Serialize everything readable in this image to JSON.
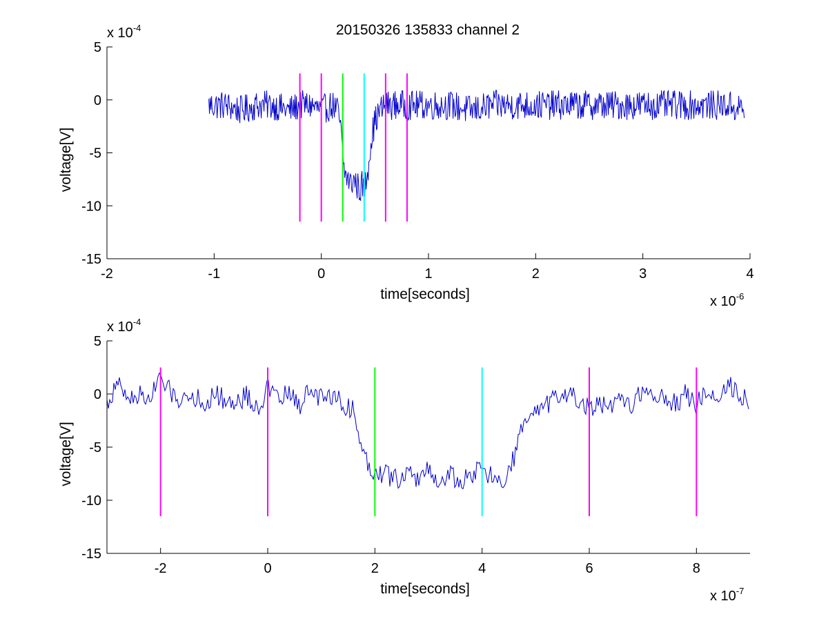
{
  "figure_title": "20150326 135833 channel 2",
  "colors": {
    "signal": "#0000cc",
    "magenta": "#ff00ff",
    "green": "#00ff00",
    "cyan": "#00ffff",
    "axis": "#000000"
  },
  "chart_data": [
    {
      "type": "line",
      "title": "20150326 135833 channel 2",
      "xlabel": "time[seconds]",
      "ylabel": "voltage[V]",
      "x_multiplier_base": "x 10",
      "x_multiplier_exp": "-6",
      "y_multiplier_base": "x 10",
      "y_multiplier_exp": "-4",
      "xlim": [
        -2,
        4
      ],
      "ylim": [
        -15,
        5
      ],
      "xticks": [
        -2,
        -1,
        0,
        1,
        2,
        3,
        4
      ],
      "yticks": [
        5,
        0,
        -5,
        -10,
        -15
      ],
      "xtick_labels": [
        "-2",
        "-1",
        "0",
        "1",
        "2",
        "3",
        "4"
      ],
      "ytick_labels": [
        "5",
        "0",
        "-5",
        "-10",
        "-15"
      ],
      "grid": false,
      "series": [
        {
          "x": [
            -1.05,
            -0.9,
            -0.75,
            -0.6,
            -0.45,
            -0.3,
            -0.2,
            -0.1,
            0.0,
            0.1,
            0.15,
            0.18,
            0.2,
            0.22,
            0.25,
            0.28,
            0.3,
            0.33,
            0.36,
            0.38,
            0.4,
            0.42,
            0.44,
            0.46,
            0.48,
            0.5,
            0.55,
            0.6,
            0.7,
            0.8,
            1.0,
            1.2,
            1.4,
            1.6,
            1.8,
            2.0,
            2.3,
            2.6,
            2.9,
            3.2,
            3.5,
            3.8,
            3.95
          ],
          "y": [
            -0.5,
            -0.5,
            -1,
            -0.5,
            -0.5,
            -1,
            -0.5,
            -0.5,
            -1,
            -0.5,
            -1,
            -2.5,
            -5.5,
            -7,
            -7.5,
            -8,
            -7.5,
            -8,
            -8.5,
            -8,
            -8.5,
            -7.5,
            -6,
            -4,
            -3,
            -2,
            -1,
            -0.5,
            -0.5,
            -0.5,
            -0.5,
            -0.5,
            -1,
            -0.5,
            -0.5,
            -0.5,
            -0.5,
            -0.5,
            -0.5,
            -0.5,
            -0.5,
            -0.5,
            -1
          ]
        }
      ],
      "markers": [
        {
          "x": -0.2,
          "color": "magenta",
          "ymin": -11.5,
          "ymax": 2.5
        },
        {
          "x": 0.0,
          "color": "magenta",
          "ymin": -11.5,
          "ymax": 2.5
        },
        {
          "x": 0.2,
          "color": "green",
          "ymin": -11.5,
          "ymax": 2.5
        },
        {
          "x": 0.4,
          "color": "cyan",
          "ymin": -11.5,
          "ymax": 2.5
        },
        {
          "x": 0.6,
          "color": "magenta",
          "ymin": -11.5,
          "ymax": 2.5
        },
        {
          "x": 0.8,
          "color": "magenta",
          "ymin": -11.5,
          "ymax": 2.5
        }
      ]
    },
    {
      "type": "line",
      "title": "",
      "xlabel": "time[seconds]",
      "ylabel": "voltage[V]",
      "x_multiplier_base": "x 10",
      "x_multiplier_exp": "-7",
      "y_multiplier_base": "x 10",
      "y_multiplier_exp": "-4",
      "xlim": [
        -3,
        9
      ],
      "ylim": [
        -15,
        5
      ],
      "xticks": [
        -2,
        0,
        2,
        4,
        6,
        8
      ],
      "yticks": [
        5,
        0,
        -5,
        -10,
        -15
      ],
      "xtick_labels": [
        "-2",
        "0",
        "2",
        "4",
        "6",
        "8"
      ],
      "ytick_labels": [
        "5",
        "0",
        "-5",
        "-10",
        "-15"
      ],
      "grid": false,
      "series": [
        {
          "x": [
            -3.0,
            -2.8,
            -2.6,
            -2.4,
            -2.2,
            -2.0,
            -1.8,
            -1.6,
            -1.4,
            -1.2,
            -1.0,
            -0.8,
            -0.6,
            -0.4,
            -0.2,
            0.0,
            0.2,
            0.4,
            0.6,
            0.8,
            1.0,
            1.2,
            1.4,
            1.6,
            1.7,
            1.8,
            1.9,
            2.0,
            2.2,
            2.4,
            2.6,
            2.8,
            3.0,
            3.2,
            3.4,
            3.6,
            3.8,
            4.0,
            4.2,
            4.4,
            4.5,
            4.6,
            4.7,
            4.8,
            5.0,
            5.2,
            5.4,
            5.6,
            5.8,
            6.0,
            6.2,
            6.4,
            6.6,
            6.8,
            7.0,
            7.2,
            7.4,
            7.6,
            7.8,
            8.0,
            8.2,
            8.4,
            8.6,
            8.8,
            9.0
          ],
          "y": [
            -1,
            1,
            -0.5,
            0,
            -0.5,
            1.5,
            0,
            -0.5,
            0,
            -1,
            0,
            -0.5,
            -1,
            0,
            -1.5,
            0.5,
            -0.5,
            0,
            -1,
            0.5,
            -0.5,
            0,
            -1,
            -1.5,
            -4,
            -5.5,
            -7,
            -7.2,
            -7.5,
            -8,
            -7.5,
            -8,
            -7,
            -8.5,
            -7.5,
            -8.5,
            -7.5,
            -7,
            -8,
            -8.5,
            -7,
            -6,
            -4,
            -2.5,
            -2,
            -1,
            -0.5,
            0,
            -0.5,
            -1.5,
            -1,
            -1.5,
            -0.5,
            -1,
            0.5,
            -0.5,
            0,
            -1,
            0,
            -1,
            0.5,
            -0.5,
            1,
            0,
            -0.5
          ]
        }
      ],
      "markers": [
        {
          "x": -2,
          "color": "magenta",
          "ymin": -11.5,
          "ymax": 2.5
        },
        {
          "x": 0,
          "color": "magenta",
          "ymin": -11.5,
          "ymax": 2.5
        },
        {
          "x": 2,
          "color": "green",
          "ymin": -11.5,
          "ymax": 2.5
        },
        {
          "x": 4,
          "color": "cyan",
          "ymin": -11.5,
          "ymax": 2.5
        },
        {
          "x": 6,
          "color": "magenta",
          "ymin": -11.5,
          "ymax": 2.5
        },
        {
          "x": 8,
          "color": "magenta",
          "ymin": -11.5,
          "ymax": 2.5
        }
      ]
    }
  ]
}
